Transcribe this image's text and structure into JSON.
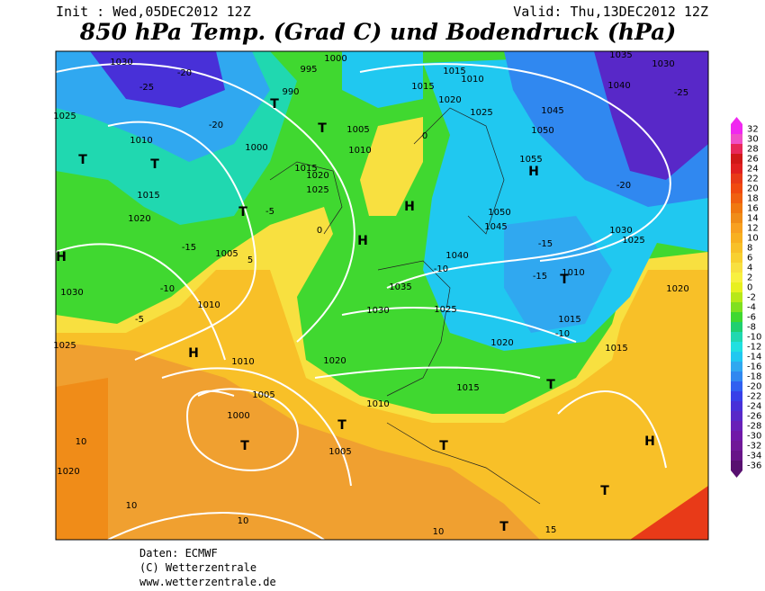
{
  "header": {
    "init": "Init : Wed,05DEC2012 12Z",
    "valid": "Valid: Thu,13DEC2012 12Z",
    "title": "850 hPa Temp. (Grad C) und Bodendruck (hPa)"
  },
  "colorbar": {
    "values": [
      32,
      30,
      28,
      26,
      24,
      22,
      20,
      18,
      16,
      14,
      12,
      10,
      8,
      6,
      4,
      2,
      0,
      -2,
      -4,
      -6,
      -8,
      -10,
      -12,
      -14,
      -16,
      -18,
      -20,
      -22,
      -24,
      -26,
      -28,
      -30,
      -32,
      -34,
      -36
    ],
    "colors": [
      "#f028f0",
      "#f050c8",
      "#e8285a",
      "#d01818",
      "#e02020",
      "#e83a18",
      "#f04a10",
      "#f06010",
      "#f07810",
      "#f08c18",
      "#f8a020",
      "#f8b020",
      "#f8c028",
      "#f8d030",
      "#f8e040",
      "#f8f040",
      "#e8f020",
      "#b8e818",
      "#80e020",
      "#40d830",
      "#20d070",
      "#20d8b0",
      "#20e0e0",
      "#20c8f0",
      "#30a8f0",
      "#3088f0",
      "#3060f0",
      "#3840e8",
      "#4830d8",
      "#5828c8",
      "#6820b8",
      "#7018a8",
      "#701898",
      "#681488",
      "#581070"
    ]
  },
  "map_labels": [
    "1030",
    "-25",
    "-20",
    "995",
    "1000",
    "990",
    "T",
    "1025",
    "-20",
    "1010",
    "T",
    "T",
    "1015",
    "1000",
    "T",
    "1005",
    "1010",
    "1015",
    "1020",
    "1025",
    "H",
    "T",
    "-5",
    "1020",
    "-15",
    "H",
    "1005",
    "1030",
    "-10",
    "1010",
    "-5",
    "1035",
    "1030",
    "1025",
    "-10",
    "1040",
    "1045",
    "1050",
    "H",
    "1055",
    "1050",
    "1045",
    "1040",
    "1035",
    "1030",
    "-25",
    "-20",
    "1030",
    "1025",
    "-15",
    "T",
    "1010",
    "-15",
    "1015",
    "-10",
    "1020",
    "1020",
    "1020",
    "H",
    "1010",
    "1005",
    "1000",
    "T",
    "T",
    "1005",
    "1010",
    "1015",
    "T",
    "T",
    "1015",
    "H",
    "T",
    "T",
    "10",
    "1020",
    "10",
    "10",
    "10",
    "15",
    "1025",
    "1015",
    "1020",
    "1025",
    "1015",
    "1010",
    "0",
    "H",
    "0",
    "5"
  ],
  "footer": [
    "Daten: ECMWF",
    "(C) Wetterzentrale",
    "www.wetterzentrale.de"
  ]
}
